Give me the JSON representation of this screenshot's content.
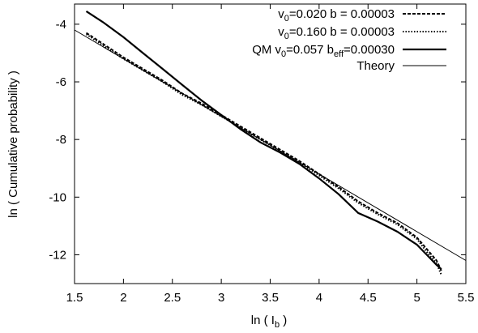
{
  "chart_data": {
    "type": "line",
    "xlabel": "ln ( I",
    "xlabel_sub": "b",
    "xlabel_end": " )",
    "ylabel": "ln ( Cumulative probability )",
    "xlim": [
      1.5,
      5.5
    ],
    "ylim": [
      -13,
      -3.3
    ],
    "xticks": [
      1.5,
      2,
      2.5,
      3,
      3.5,
      4,
      4.5,
      5,
      5.5
    ],
    "xtick_labels": [
      "1.5",
      "2",
      "2.5",
      "3",
      "3.5",
      "4",
      "4.5",
      "5",
      "5.5"
    ],
    "yticks": [
      -4,
      -6,
      -8,
      -10,
      -12
    ],
    "ytick_labels": [
      "-4",
      "-6",
      "-8",
      "-10",
      "-12"
    ],
    "grid": false,
    "legend_position": "top-right",
    "series": [
      {
        "name": "v0=0.020   b  = 0.00003",
        "legend": {
          "pre": "v",
          "sub": "0",
          "post": "=0.020   b  = 0.00003"
        },
        "style": "dashed",
        "color": "#000000",
        "x": [
          1.62,
          1.8,
          2.0,
          2.2,
          2.4,
          2.6,
          2.8,
          3.0,
          3.2,
          3.4,
          3.6,
          3.8,
          4.0,
          4.2,
          4.4,
          4.6,
          4.8,
          5.0,
          5.1,
          5.2,
          5.25
        ],
        "y": [
          -4.3,
          -4.7,
          -5.15,
          -5.55,
          -5.95,
          -6.4,
          -6.75,
          -7.15,
          -7.55,
          -7.95,
          -8.35,
          -8.75,
          -9.2,
          -9.65,
          -10.15,
          -10.55,
          -10.9,
          -11.4,
          -11.8,
          -12.2,
          -12.55
        ]
      },
      {
        "name": "v0=0.160   b  = 0.00003",
        "legend": {
          "pre": "v",
          "sub": "0",
          "post": "=0.160   b  = 0.00003"
        },
        "style": "dotted",
        "color": "#000000",
        "x": [
          1.62,
          1.8,
          2.0,
          2.2,
          2.4,
          2.6,
          2.8,
          3.0,
          3.2,
          3.4,
          3.6,
          3.8,
          4.0,
          4.2,
          4.4,
          4.6,
          4.8,
          5.0,
          5.1,
          5.2,
          5.25
        ],
        "y": [
          -4.35,
          -4.75,
          -5.2,
          -5.6,
          -6.0,
          -6.45,
          -6.8,
          -7.2,
          -7.6,
          -8.0,
          -8.4,
          -8.8,
          -9.25,
          -9.7,
          -10.2,
          -10.6,
          -10.95,
          -11.45,
          -11.9,
          -12.3,
          -12.7
        ]
      },
      {
        "name": "QM v0=0.057   beff=0.00030",
        "legend": {
          "pre": "QM v",
          "sub": "0",
          "post": "=0.057   b",
          "sub2": "eff",
          "post2": "=0.00030"
        },
        "style": "solid-thick",
        "color": "#000000",
        "x": [
          1.62,
          1.8,
          2.0,
          2.2,
          2.4,
          2.6,
          2.8,
          3.0,
          3.2,
          3.4,
          3.6,
          3.7,
          3.8,
          4.0,
          4.2,
          4.4,
          4.6,
          4.8,
          5.0,
          5.1,
          5.2,
          5.25
        ],
        "y": [
          -3.55,
          -3.95,
          -4.45,
          -5.0,
          -5.55,
          -6.1,
          -6.65,
          -7.15,
          -7.65,
          -8.1,
          -8.45,
          -8.65,
          -8.85,
          -9.35,
          -9.9,
          -10.55,
          -10.85,
          -11.2,
          -11.65,
          -12.0,
          -12.35,
          -12.5
        ]
      },
      {
        "name": "Theory",
        "legend": {
          "pre": "Theory",
          "sub": "",
          "post": ""
        },
        "style": "solid-thin",
        "color": "#000000",
        "x": [
          1.5,
          5.5
        ],
        "y": [
          -4.2,
          -12.2
        ]
      }
    ]
  }
}
